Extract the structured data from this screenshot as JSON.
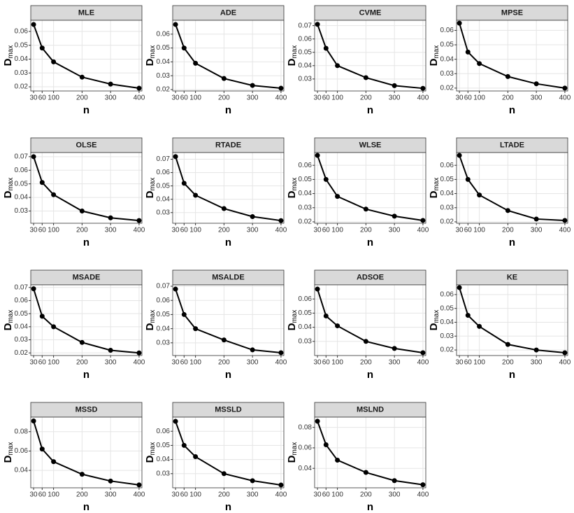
{
  "chart_data": [
    {
      "type": "line",
      "title": "MLE",
      "x": [
        30,
        60,
        100,
        200,
        300,
        400
      ],
      "values": [
        0.065,
        0.048,
        0.038,
        0.027,
        0.022,
        0.019
      ],
      "xlabel": "n",
      "ylabel": "D",
      "ylabel_subscript": "max",
      "xlim": [
        20,
        410
      ],
      "xticks": [
        30,
        60,
        100,
        200,
        300,
        400
      ],
      "ylim": [
        0.017,
        0.068
      ],
      "yticks": [
        0.02,
        0.03,
        0.04,
        0.05,
        0.06
      ],
      "color": "#000000",
      "grid": true
    },
    {
      "type": "line",
      "title": "ADE",
      "x": [
        30,
        60,
        100,
        200,
        300,
        400
      ],
      "values": [
        0.067,
        0.05,
        0.039,
        0.028,
        0.023,
        0.021
      ],
      "xlabel": "n",
      "ylabel": "D",
      "ylabel_subscript": "max",
      "xlim": [
        20,
        410
      ],
      "xticks": [
        30,
        60,
        100,
        200,
        300,
        400
      ],
      "ylim": [
        0.019,
        0.07
      ],
      "yticks": [
        0.02,
        0.03,
        0.04,
        0.05,
        0.06
      ],
      "color": "#000000",
      "grid": true
    },
    {
      "type": "line",
      "title": "CVME",
      "x": [
        30,
        60,
        100,
        200,
        300,
        400
      ],
      "values": [
        0.071,
        0.053,
        0.04,
        0.031,
        0.025,
        0.023
      ],
      "xlabel": "n",
      "ylabel": "D",
      "ylabel_subscript": "max",
      "xlim": [
        20,
        410
      ],
      "xticks": [
        30,
        60,
        100,
        200,
        300,
        400
      ],
      "ylim": [
        0.021,
        0.074
      ],
      "yticks": [
        0.03,
        0.04,
        0.05,
        0.06,
        0.07
      ],
      "color": "#000000",
      "grid": true
    },
    {
      "type": "line",
      "title": "MPSE",
      "x": [
        30,
        60,
        100,
        200,
        300,
        400
      ],
      "values": [
        0.065,
        0.045,
        0.037,
        0.028,
        0.023,
        0.02
      ],
      "xlabel": "n",
      "ylabel": "D",
      "ylabel_subscript": "max",
      "xlim": [
        20,
        410
      ],
      "xticks": [
        30,
        60,
        100,
        200,
        300,
        400
      ],
      "ylim": [
        0.018,
        0.067
      ],
      "yticks": [
        0.02,
        0.03,
        0.04,
        0.05,
        0.06
      ],
      "color": "#000000",
      "grid": true
    },
    {
      "type": "line",
      "title": "OLSE",
      "x": [
        30,
        60,
        100,
        200,
        300,
        400
      ],
      "values": [
        0.07,
        0.051,
        0.042,
        0.03,
        0.025,
        0.023
      ],
      "xlabel": "n",
      "ylabel": "D",
      "ylabel_subscript": "max",
      "xlim": [
        20,
        410
      ],
      "xticks": [
        30,
        60,
        100,
        200,
        300,
        400
      ],
      "ylim": [
        0.021,
        0.073
      ],
      "yticks": [
        0.03,
        0.04,
        0.05,
        0.06,
        0.07
      ],
      "color": "#000000",
      "grid": true
    },
    {
      "type": "line",
      "title": "RTADE",
      "x": [
        30,
        60,
        100,
        200,
        300,
        400
      ],
      "values": [
        0.072,
        0.052,
        0.043,
        0.033,
        0.027,
        0.024
      ],
      "xlabel": "n",
      "ylabel": "D",
      "ylabel_subscript": "max",
      "xlim": [
        20,
        410
      ],
      "xticks": [
        30,
        60,
        100,
        200,
        300,
        400
      ],
      "ylim": [
        0.022,
        0.075
      ],
      "yticks": [
        0.03,
        0.04,
        0.05,
        0.06,
        0.07
      ],
      "color": "#000000",
      "grid": true
    },
    {
      "type": "line",
      "title": "WLSE",
      "x": [
        30,
        60,
        100,
        200,
        300,
        400
      ],
      "values": [
        0.067,
        0.05,
        0.038,
        0.029,
        0.024,
        0.021
      ],
      "xlabel": "n",
      "ylabel": "D",
      "ylabel_subscript": "max",
      "xlim": [
        20,
        410
      ],
      "xticks": [
        30,
        60,
        100,
        200,
        300,
        400
      ],
      "ylim": [
        0.019,
        0.069
      ],
      "yticks": [
        0.02,
        0.03,
        0.04,
        0.05,
        0.06
      ],
      "color": "#000000",
      "grid": true
    },
    {
      "type": "line",
      "title": "LTADE",
      "x": [
        30,
        60,
        100,
        200,
        300,
        400
      ],
      "values": [
        0.067,
        0.05,
        0.039,
        0.028,
        0.022,
        0.021
      ],
      "xlabel": "n",
      "ylabel": "D",
      "ylabel_subscript": "max",
      "xlim": [
        20,
        410
      ],
      "xticks": [
        30,
        60,
        100,
        200,
        300,
        400
      ],
      "ylim": [
        0.019,
        0.069
      ],
      "yticks": [
        0.02,
        0.03,
        0.04,
        0.05,
        0.06
      ],
      "color": "#000000",
      "grid": true
    },
    {
      "type": "line",
      "title": "MSADE",
      "x": [
        30,
        60,
        100,
        200,
        300,
        400
      ],
      "values": [
        0.069,
        0.048,
        0.04,
        0.028,
        0.022,
        0.02
      ],
      "xlabel": "n",
      "ylabel": "D",
      "ylabel_subscript": "max",
      "xlim": [
        20,
        410
      ],
      "xticks": [
        30,
        60,
        100,
        200,
        300,
        400
      ],
      "ylim": [
        0.018,
        0.072
      ],
      "yticks": [
        0.02,
        0.03,
        0.04,
        0.05,
        0.06,
        0.07
      ],
      "color": "#000000",
      "grid": true
    },
    {
      "type": "line",
      "title": "MSALDE",
      "x": [
        30,
        60,
        100,
        200,
        300,
        400
      ],
      "values": [
        0.068,
        0.05,
        0.04,
        0.032,
        0.025,
        0.023
      ],
      "xlabel": "n",
      "ylabel": "D",
      "ylabel_subscript": "max",
      "xlim": [
        20,
        410
      ],
      "xticks": [
        30,
        60,
        100,
        200,
        300,
        400
      ],
      "ylim": [
        0.021,
        0.071
      ],
      "yticks": [
        0.03,
        0.04,
        0.05,
        0.06,
        0.07
      ],
      "color": "#000000",
      "grid": true
    },
    {
      "type": "line",
      "title": "ADSOE",
      "x": [
        30,
        60,
        100,
        200,
        300,
        400
      ],
      "values": [
        0.067,
        0.048,
        0.041,
        0.03,
        0.025,
        0.022
      ],
      "xlabel": "n",
      "ylabel": "D",
      "ylabel_subscript": "max",
      "xlim": [
        20,
        410
      ],
      "xticks": [
        30,
        60,
        100,
        200,
        300,
        400
      ],
      "ylim": [
        0.02,
        0.07
      ],
      "yticks": [
        0.03,
        0.04,
        0.05,
        0.06
      ],
      "color": "#000000",
      "grid": true
    },
    {
      "type": "line",
      "title": "KE",
      "x": [
        30,
        60,
        100,
        200,
        300,
        400
      ],
      "values": [
        0.065,
        0.045,
        0.037,
        0.024,
        0.02,
        0.018
      ],
      "xlabel": "n",
      "ylabel": "D",
      "ylabel_subscript": "max",
      "xlim": [
        20,
        410
      ],
      "xticks": [
        30,
        60,
        100,
        200,
        300,
        400
      ],
      "ylim": [
        0.016,
        0.067
      ],
      "yticks": [
        0.02,
        0.03,
        0.04,
        0.05,
        0.06
      ],
      "color": "#000000",
      "grid": true
    },
    {
      "type": "line",
      "title": "MSSD",
      "x": [
        30,
        60,
        100,
        200,
        300,
        400
      ],
      "values": [
        0.091,
        0.062,
        0.049,
        0.036,
        0.029,
        0.025
      ],
      "xlabel": "n",
      "ylabel": "D",
      "ylabel_subscript": "max",
      "xlim": [
        20,
        410
      ],
      "xticks": [
        30,
        60,
        100,
        200,
        300,
        400
      ],
      "ylim": [
        0.022,
        0.095
      ],
      "yticks": [
        0.04,
        0.06,
        0.08
      ],
      "color": "#000000",
      "grid": true
    },
    {
      "type": "line",
      "title": "MSSLD",
      "x": [
        30,
        60,
        100,
        200,
        300,
        400
      ],
      "values": [
        0.067,
        0.05,
        0.042,
        0.03,
        0.025,
        0.022
      ],
      "xlabel": "n",
      "ylabel": "D",
      "ylabel_subscript": "max",
      "xlim": [
        20,
        410
      ],
      "xticks": [
        30,
        60,
        100,
        200,
        300,
        400
      ],
      "ylim": [
        0.02,
        0.07
      ],
      "yticks": [
        0.03,
        0.04,
        0.05,
        0.06
      ],
      "color": "#000000",
      "grid": true
    },
    {
      "type": "line",
      "title": "MSLND",
      "x": [
        30,
        60,
        100,
        200,
        300,
        400
      ],
      "values": [
        0.086,
        0.063,
        0.048,
        0.036,
        0.028,
        0.024
      ],
      "xlabel": "n",
      "ylabel": "D",
      "ylabel_subscript": "max",
      "xlim": [
        20,
        410
      ],
      "xticks": [
        30,
        60,
        100,
        200,
        300,
        400
      ],
      "ylim": [
        0.021,
        0.09
      ],
      "yticks": [
        0.04,
        0.06,
        0.08
      ],
      "color": "#000000",
      "grid": true
    }
  ]
}
